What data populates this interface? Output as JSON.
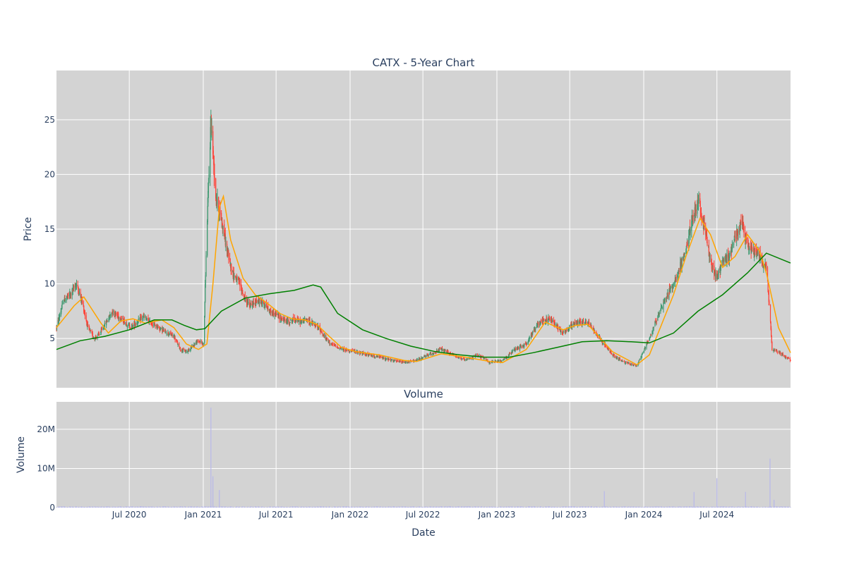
{
  "chart_data": [
    {
      "type": "candlestick",
      "title": "CATX - 5-Year Chart",
      "ylabel": "Price",
      "ylim": [
        0.5,
        29.5
      ],
      "yticks": [
        5,
        10,
        15,
        20,
        25
      ],
      "x_range": [
        "2020-01-02",
        "2024-12-31"
      ],
      "background": "#d3d3d3",
      "grid": true,
      "colors": {
        "up": "#3d9970",
        "down": "#ff4136",
        "ma_short": "#ffa500",
        "ma_long": "#008000"
      },
      "series": [
        {
          "kind": "price_close_approx",
          "points": [
            [
              "2020-01-02",
              6.0
            ],
            [
              "2020-01-20",
              8.5
            ],
            [
              "2020-02-05",
              9.0
            ],
            [
              "2020-02-20",
              10.0
            ],
            [
              "2020-03-05",
              8.5
            ],
            [
              "2020-03-20",
              6.0
            ],
            [
              "2020-04-05",
              5.0
            ],
            [
              "2020-04-20",
              5.5
            ],
            [
              "2020-05-05",
              6.5
            ],
            [
              "2020-05-20",
              7.5
            ],
            [
              "2020-06-05",
              7.0
            ],
            [
              "2020-06-20",
              6.5
            ],
            [
              "2020-07-05",
              6.0
            ],
            [
              "2020-07-20",
              6.5
            ],
            [
              "2020-08-05",
              7.0
            ],
            [
              "2020-08-20",
              6.5
            ],
            [
              "2020-09-05",
              6.2
            ],
            [
              "2020-09-20",
              5.8
            ],
            [
              "2020-10-05",
              5.5
            ],
            [
              "2020-10-20",
              5.2
            ],
            [
              "2020-11-05",
              4.0
            ],
            [
              "2020-11-20",
              3.8
            ],
            [
              "2020-12-05",
              4.3
            ],
            [
              "2020-12-20",
              4.8
            ],
            [
              "2021-01-02",
              4.5
            ],
            [
              "2021-01-10",
              15.0
            ],
            [
              "2021-01-20",
              25.0
            ],
            [
              "2021-02-01",
              18.0
            ],
            [
              "2021-02-15",
              16.0
            ],
            [
              "2021-03-01",
              13.0
            ],
            [
              "2021-03-15",
              11.0
            ],
            [
              "2021-04-01",
              10.0
            ],
            [
              "2021-04-15",
              8.5
            ],
            [
              "2021-05-01",
              8.0
            ],
            [
              "2021-05-15",
              8.5
            ],
            [
              "2021-06-01",
              8.2
            ],
            [
              "2021-06-15",
              7.5
            ],
            [
              "2021-07-01",
              7.2
            ],
            [
              "2021-07-15",
              6.8
            ],
            [
              "2021-08-01",
              6.5
            ],
            [
              "2021-08-15",
              6.8
            ],
            [
              "2021-09-01",
              6.5
            ],
            [
              "2021-09-15",
              6.8
            ],
            [
              "2021-10-01",
              6.3
            ],
            [
              "2021-10-15",
              6.0
            ],
            [
              "2021-11-01",
              5.0
            ],
            [
              "2021-11-15",
              4.5
            ],
            [
              "2021-12-01",
              4.2
            ],
            [
              "2021-12-15",
              4.0
            ],
            [
              "2022-01-15",
              3.8
            ],
            [
              "2022-02-15",
              3.5
            ],
            [
              "2022-03-15",
              3.3
            ],
            [
              "2022-04-15",
              3.0
            ],
            [
              "2022-05-15",
              2.8
            ],
            [
              "2022-06-15",
              3.0
            ],
            [
              "2022-07-15",
              3.5
            ],
            [
              "2022-08-15",
              4.0
            ],
            [
              "2022-09-15",
              3.5
            ],
            [
              "2022-10-15",
              3.0
            ],
            [
              "2022-11-15",
              3.5
            ],
            [
              "2022-12-15",
              2.8
            ],
            [
              "2023-01-15",
              3.0
            ],
            [
              "2023-02-15",
              4.0
            ],
            [
              "2023-03-15",
              4.5
            ],
            [
              "2023-04-15",
              6.5
            ],
            [
              "2023-05-15",
              6.8
            ],
            [
              "2023-06-15",
              5.5
            ],
            [
              "2023-07-15",
              6.5
            ],
            [
              "2023-08-15",
              6.5
            ],
            [
              "2023-09-15",
              5.0
            ],
            [
              "2023-10-15",
              3.5
            ],
            [
              "2023-11-15",
              2.8
            ],
            [
              "2023-12-15",
              2.5
            ],
            [
              "2024-01-15",
              5.0
            ],
            [
              "2024-02-15",
              8.0
            ],
            [
              "2024-03-15",
              10.0
            ],
            [
              "2024-04-15",
              13.0
            ],
            [
              "2024-05-01",
              16.0
            ],
            [
              "2024-05-15",
              17.5
            ],
            [
              "2024-06-01",
              15.0
            ],
            [
              "2024-06-15",
              12.0
            ],
            [
              "2024-07-01",
              10.5
            ],
            [
              "2024-07-15",
              12.0
            ],
            [
              "2024-08-01",
              12.5
            ],
            [
              "2024-08-15",
              14.5
            ],
            [
              "2024-09-01",
              15.5
            ],
            [
              "2024-09-15",
              13.5
            ],
            [
              "2024-10-01",
              13.0
            ],
            [
              "2024-10-15",
              12.5
            ],
            [
              "2024-11-01",
              11.5
            ],
            [
              "2024-11-10",
              7.0
            ],
            [
              "2024-11-15",
              4.0
            ],
            [
              "2024-12-01",
              3.8
            ],
            [
              "2024-12-31",
              3.0
            ]
          ]
        },
        {
          "kind": "moving_average_short",
          "points": [
            [
              "2020-01-02",
              6.0
            ],
            [
              "2020-02-15",
              8.0
            ],
            [
              "2020-03-10",
              8.8
            ],
            [
              "2020-04-20",
              6.5
            ],
            [
              "2020-05-10",
              5.5
            ],
            [
              "2020-06-10",
              6.6
            ],
            [
              "2020-07-10",
              6.8
            ],
            [
              "2020-08-10",
              6.4
            ],
            [
              "2020-09-20",
              6.7
            ],
            [
              "2020-10-20",
              6.0
            ],
            [
              "2020-11-20",
              4.5
            ],
            [
              "2020-12-20",
              4.0
            ],
            [
              "2021-01-10",
              4.5
            ],
            [
              "2021-01-25",
              10.0
            ],
            [
              "2021-02-10",
              17.0
            ],
            [
              "2021-02-20",
              18.0
            ],
            [
              "2021-03-10",
              14.0
            ],
            [
              "2021-04-10",
              10.5
            ],
            [
              "2021-05-10",
              9.0
            ],
            [
              "2021-06-10",
              8.2
            ],
            [
              "2021-07-10",
              7.3
            ],
            [
              "2021-08-10",
              6.8
            ],
            [
              "2021-09-10",
              6.7
            ],
            [
              "2021-10-10",
              6.3
            ],
            [
              "2021-11-10",
              5.2
            ],
            [
              "2021-12-10",
              4.2
            ],
            [
              "2022-01-15",
              3.8
            ],
            [
              "2022-03-15",
              3.5
            ],
            [
              "2022-05-15",
              3.0
            ],
            [
              "2022-06-15",
              2.9
            ],
            [
              "2022-08-15",
              3.6
            ],
            [
              "2022-10-15",
              3.3
            ],
            [
              "2022-12-15",
              2.9
            ],
            [
              "2023-01-15",
              2.8
            ],
            [
              "2023-03-15",
              4.0
            ],
            [
              "2023-05-01",
              6.5
            ],
            [
              "2023-06-15",
              5.8
            ],
            [
              "2023-07-15",
              6.2
            ],
            [
              "2023-08-15",
              6.3
            ],
            [
              "2023-10-15",
              3.8
            ],
            [
              "2023-12-15",
              2.6
            ],
            [
              "2024-01-15",
              3.5
            ],
            [
              "2024-03-15",
              9.0
            ],
            [
              "2024-04-15",
              12.5
            ],
            [
              "2024-05-20",
              16.0
            ],
            [
              "2024-06-15",
              14.5
            ],
            [
              "2024-07-15",
              11.5
            ],
            [
              "2024-08-15",
              12.5
            ],
            [
              "2024-09-15",
              14.5
            ],
            [
              "2024-10-15",
              13.0
            ],
            [
              "2024-11-01",
              11.0
            ],
            [
              "2024-12-01",
              6.0
            ],
            [
              "2024-12-31",
              3.7
            ]
          ]
        },
        {
          "kind": "moving_average_long",
          "points": [
            [
              "2020-01-02",
              4.0
            ],
            [
              "2020-03-01",
              4.8
            ],
            [
              "2020-05-01",
              5.2
            ],
            [
              "2020-07-01",
              5.8
            ],
            [
              "2020-09-01",
              6.7
            ],
            [
              "2020-10-15",
              6.7
            ],
            [
              "2020-11-15",
              6.2
            ],
            [
              "2020-12-15",
              5.8
            ],
            [
              "2021-01-05",
              5.9
            ],
            [
              "2021-02-15",
              7.5
            ],
            [
              "2021-04-15",
              8.7
            ],
            [
              "2021-06-15",
              9.1
            ],
            [
              "2021-08-15",
              9.4
            ],
            [
              "2021-10-01",
              9.9
            ],
            [
              "2021-10-20",
              9.7
            ],
            [
              "2021-12-01",
              7.3
            ],
            [
              "2022-02-01",
              5.8
            ],
            [
              "2022-04-01",
              5.0
            ],
            [
              "2022-06-01",
              4.3
            ],
            [
              "2022-08-01",
              3.8
            ],
            [
              "2022-10-01",
              3.5
            ],
            [
              "2022-12-01",
              3.3
            ],
            [
              "2023-02-01",
              3.3
            ],
            [
              "2023-04-01",
              3.7
            ],
            [
              "2023-06-01",
              4.2
            ],
            [
              "2023-08-01",
              4.7
            ],
            [
              "2023-10-01",
              4.8
            ],
            [
              "2023-12-01",
              4.7
            ],
            [
              "2024-01-15",
              4.6
            ],
            [
              "2024-03-15",
              5.5
            ],
            [
              "2024-05-15",
              7.5
            ],
            [
              "2024-07-15",
              9.0
            ],
            [
              "2024-09-15",
              11.0
            ],
            [
              "2024-11-01",
              12.8
            ],
            [
              "2024-12-31",
              11.9
            ]
          ]
        }
      ]
    },
    {
      "type": "bar",
      "title": "Volume",
      "xlabel": "Date",
      "ylabel": "Volume",
      "ylim": [
        0,
        27000000
      ],
      "yticks": [
        0,
        10000000,
        20000000
      ],
      "ytick_labels": [
        "0",
        "10M",
        "20M"
      ],
      "x_tick_labels": [
        "Jul 2020",
        "Jan 2021",
        "Jul 2021",
        "Jan 2022",
        "Jul 2022",
        "Jan 2023",
        "Jul 2023",
        "Jan 2024",
        "Jul 2024"
      ],
      "x_tick_dates": [
        "2020-07-01",
        "2021-01-01",
        "2021-07-01",
        "2022-01-01",
        "2022-07-01",
        "2023-01-01",
        "2023-07-01",
        "2024-01-01",
        "2024-07-01"
      ],
      "bar_color": "#b8b8ea",
      "spikes": [
        [
          "2021-01-20",
          25500000
        ],
        [
          "2021-01-25",
          8000000
        ],
        [
          "2021-02-10",
          4500000
        ],
        [
          "2023-09-25",
          4200000
        ],
        [
          "2024-05-05",
          4000000
        ],
        [
          "2024-07-01",
          7500000
        ],
        [
          "2024-09-10",
          4000000
        ],
        [
          "2024-11-10",
          12500000
        ],
        [
          "2024-11-20",
          2000000
        ]
      ],
      "base_volume": 200000
    }
  ]
}
